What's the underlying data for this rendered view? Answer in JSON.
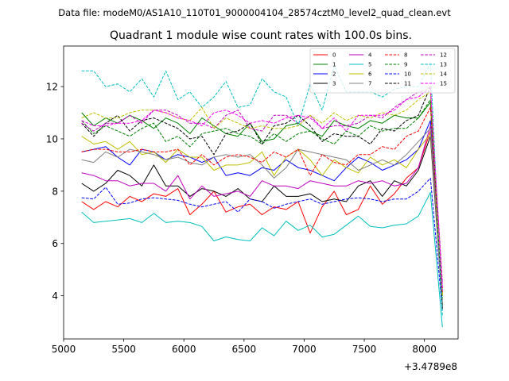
{
  "chart_data": {
    "type": "line",
    "suptitle": "Data file: modeM0/AS1A10_110T01_9000004104_28574cztM0_level2_quad_clean.evt",
    "title": "Quadrant 1 module wise count rates with 100.0s bins.",
    "xlabel": "",
    "ylabel": "",
    "x_offset_label": "+3.4789e8",
    "xlim": [
      5000,
      8280
    ],
    "ylim": [
      2.35,
      13.55
    ],
    "xticks": [
      5000,
      5500,
      6000,
      6500,
      7000,
      7500,
      8000
    ],
    "yticks": [
      4,
      6,
      8,
      10,
      12
    ],
    "x": [
      5150,
      5250,
      5350,
      5450,
      5550,
      5650,
      5750,
      5850,
      5950,
      6050,
      6150,
      6250,
      6350,
      6450,
      6550,
      6650,
      6750,
      6850,
      6950,
      7050,
      7150,
      7250,
      7350,
      7450,
      7550,
      7650,
      7750,
      7850,
      7950,
      8050,
      8150
    ],
    "legend": {
      "placement": "upper-right",
      "columns": 4
    },
    "series": [
      {
        "name": "0",
        "color": "#ff0000",
        "dash": false,
        "values": [
          7.6,
          7.3,
          7.6,
          7.4,
          7.8,
          7.6,
          7.9,
          7.8,
          8.1,
          7.1,
          7.5,
          8.0,
          7.2,
          7.4,
          7.5,
          7.1,
          7.4,
          7.3,
          7.6,
          6.4,
          7.4,
          8.0,
          7.1,
          7.3,
          8.2,
          7.5,
          7.9,
          8.5,
          8.9,
          10.3,
          4.3
        ]
      },
      {
        "name": "1",
        "color": "#008000",
        "dash": false,
        "values": [
          11.0,
          10.5,
          10.8,
          10.6,
          10.9,
          10.7,
          10.4,
          10.8,
          10.6,
          10.2,
          10.8,
          10.5,
          10.2,
          10.1,
          10.6,
          9.9,
          10.0,
          10.5,
          10.6,
          10.3,
          10.1,
          10.7,
          10.5,
          10.4,
          10.7,
          10.6,
          10.9,
          10.8,
          10.8,
          11.4,
          4.0
        ]
      },
      {
        "name": "2",
        "color": "#0000ff",
        "dash": false,
        "values": [
          9.5,
          9.6,
          9.7,
          9.3,
          9.0,
          9.6,
          9.5,
          9.2,
          9.4,
          9.3,
          9.1,
          9.3,
          8.6,
          8.7,
          8.6,
          8.9,
          8.8,
          9.2,
          8.9,
          8.8,
          8.6,
          8.4,
          8.9,
          9.3,
          9.1,
          8.8,
          9.0,
          9.2,
          9.6,
          10.7,
          4.2
        ]
      },
      {
        "name": "3",
        "color": "#000000",
        "dash": false,
        "values": [
          8.3,
          8.0,
          8.3,
          8.8,
          8.6,
          8.2,
          9.0,
          8.2,
          8.2,
          7.8,
          8.1,
          8.0,
          7.8,
          8.1,
          7.7,
          7.6,
          8.2,
          7.8,
          7.8,
          7.9,
          7.6,
          7.7,
          7.6,
          8.2,
          8.4,
          7.8,
          8.4,
          8.2,
          8.8,
          10.1,
          3.6
        ]
      },
      {
        "name": "4",
        "color": "#bf00bf",
        "dash": false,
        "values": [
          8.7,
          8.6,
          8.4,
          8.4,
          8.2,
          8.3,
          8.3,
          8.0,
          8.6,
          7.7,
          8.2,
          7.8,
          7.9,
          8.0,
          7.8,
          8.4,
          8.2,
          8.2,
          8.1,
          8.4,
          8.3,
          8.2,
          8.2,
          8.4,
          8.3,
          8.4,
          8.2,
          8.3,
          8.9,
          10.5,
          4.3
        ]
      },
      {
        "name": "5",
        "color": "#00bfbf",
        "dash": false,
        "values": [
          7.2,
          6.8,
          6.85,
          6.9,
          6.95,
          6.8,
          7.15,
          6.8,
          6.85,
          6.8,
          6.65,
          6.1,
          6.25,
          6.15,
          6.1,
          6.6,
          6.3,
          6.85,
          6.5,
          6.7,
          6.25,
          6.35,
          6.7,
          7.05,
          6.65,
          6.6,
          6.7,
          6.75,
          7.05,
          7.95,
          2.8
        ]
      },
      {
        "name": "6",
        "color": "#bfbf00",
        "dash": false,
        "values": [
          10.1,
          9.8,
          9.9,
          9.6,
          9.9,
          9.4,
          9.5,
          9.1,
          9.6,
          9.3,
          9.3,
          8.8,
          9.0,
          9.0,
          9.1,
          9.5,
          8.6,
          9.3,
          9.6,
          9.2,
          8.6,
          9.2,
          8.9,
          8.7,
          9.3,
          9.0,
          9.2,
          8.9,
          9.6,
          10.2,
          4.1
        ]
      },
      {
        "name": "7",
        "color": "#808080",
        "dash": false,
        "values": [
          9.2,
          9.1,
          9.5,
          9.3,
          9.6,
          9.5,
          9.4,
          9.2,
          9.3,
          9.1,
          9.0,
          9.3,
          9.4,
          9.3,
          9.4,
          9.0,
          8.5,
          8.9,
          9.6,
          9.5,
          9.4,
          9.3,
          9.2,
          8.8,
          9.0,
          9.2,
          9.0,
          9.4,
          9.9,
          10.4,
          3.5
        ]
      },
      {
        "name": "8",
        "color": "#ff0000",
        "dash": true,
        "values": [
          9.5,
          9.6,
          9.6,
          9.5,
          9.5,
          9.6,
          9.5,
          9.5,
          9.6,
          9.0,
          9.4,
          9.0,
          9.3,
          9.4,
          9.3,
          9.1,
          9.5,
          9.3,
          9.6,
          8.6,
          9.4,
          9.1,
          9.0,
          9.4,
          9.4,
          9.7,
          9.6,
          10.1,
          10.3,
          11.2,
          4.1
        ]
      },
      {
        "name": "9",
        "color": "#008000",
        "dash": true,
        "values": [
          10.7,
          10.2,
          10.5,
          10.3,
          10.1,
          10.4,
          10.6,
          9.9,
          10.1,
          9.7,
          10.2,
          10.3,
          10.4,
          10.2,
          10.1,
          9.8,
          10.2,
          9.9,
          10.2,
          10.3,
          10.0,
          9.8,
          10.3,
          10.1,
          10.5,
          10.3,
          10.4,
          10.4,
          10.8,
          11.5,
          3.9
        ]
      },
      {
        "name": "10",
        "color": "#0000ff",
        "dash": true,
        "values": [
          7.75,
          7.7,
          8.15,
          7.5,
          7.55,
          7.7,
          7.75,
          7.7,
          7.65,
          7.5,
          7.4,
          7.5,
          7.6,
          7.2,
          7.7,
          7.6,
          7.35,
          7.5,
          7.6,
          7.7,
          7.5,
          7.6,
          7.7,
          7.75,
          7.7,
          7.6,
          7.7,
          7.7,
          8.0,
          8.5,
          3.4
        ]
      },
      {
        "name": "11",
        "color": "#000000",
        "dash": true,
        "values": [
          10.6,
          10.1,
          10.6,
          10.9,
          10.3,
          10.7,
          10.8,
          10.6,
          10.4,
          10.0,
          10.1,
          9.4,
          10.2,
          10.3,
          10.6,
          9.8,
          10.5,
          10.6,
          10.9,
          10.5,
          9.9,
          10.2,
          10.1,
          10.1,
          9.8,
          10.4,
          10.3,
          10.7,
          10.9,
          12.0,
          3.5
        ]
      },
      {
        "name": "12",
        "color": "#bf00bf",
        "dash": true,
        "values": [
          10.6,
          10.3,
          10.6,
          10.6,
          10.9,
          10.6,
          11.1,
          11.1,
          10.9,
          10.6,
          10.6,
          10.4,
          10.9,
          11.1,
          10.4,
          10.3,
          10.9,
          10.9,
          10.6,
          10.9,
          10.4,
          10.5,
          10.5,
          10.6,
          10.9,
          10.8,
          11.2,
          11.5,
          11.8,
          11.8,
          4.5
        ]
      },
      {
        "name": "13",
        "color": "#00bfbf",
        "dash": true,
        "values": [
          12.6,
          12.6,
          12.0,
          12.1,
          11.8,
          12.3,
          11.6,
          12.6,
          11.5,
          11.8,
          11.2,
          11.6,
          12.2,
          11.2,
          11.3,
          12.3,
          11.8,
          11.6,
          10.5,
          12.1,
          11.1,
          12.8,
          11.8,
          11.8,
          11.8,
          11.6,
          11.9,
          12.0,
          12.0,
          12.9,
          3.2
        ]
      },
      {
        "name": "14",
        "color": "#bfbf00",
        "dash": true,
        "values": [
          10.8,
          11.0,
          10.8,
          10.8,
          11.0,
          11.1,
          11.1,
          11.0,
          10.8,
          10.7,
          11.2,
          10.4,
          10.8,
          10.6,
          10.4,
          10.5,
          10.4,
          10.4,
          10.5,
          10.9,
          10.6,
          11.0,
          10.7,
          10.9,
          10.8,
          11.0,
          10.9,
          11.1,
          11.5,
          11.8,
          4.0
        ]
      },
      {
        "name": "15",
        "color": "#ff00ff",
        "dash": true,
        "values": [
          10.7,
          10.5,
          10.5,
          10.6,
          10.6,
          10.7,
          11.1,
          11.0,
          10.8,
          10.7,
          10.5,
          11.0,
          11.1,
          10.9,
          10.6,
          10.7,
          10.6,
          10.8,
          10.9,
          10.8,
          10.4,
          10.8,
          10.3,
          10.9,
          10.9,
          10.9,
          11.1,
          11.5,
          11.6,
          12.0,
          4.2
        ]
      }
    ]
  }
}
